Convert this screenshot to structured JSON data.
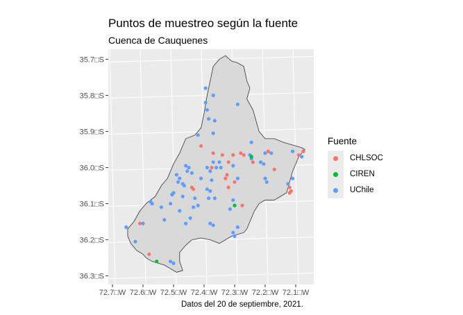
{
  "title": "Puntos de muestreo según la fuente",
  "subtitle": "Cuenca de Cauquenes",
  "caption": "Datos del 20 de septiembre, 2021.",
  "legend": {
    "title": "Fuente",
    "items": [
      {
        "label": "CHLSOC",
        "color": "#F8766D"
      },
      {
        "label": "CIREN",
        "color": "#00BA38"
      },
      {
        "label": "UChile",
        "color": "#619CFF"
      }
    ]
  },
  "axes": {
    "x_ticks": [
      "72.7□W",
      "72.6□W",
      "72.5□W",
      "72.4□W",
      "72.3□W",
      "72.2□W",
      "72.1□W"
    ],
    "y_ticks": [
      "35.7□S",
      "35.8□S",
      "35.9□S",
      "36.0□S",
      "36.1□S",
      "36.2□S",
      "36.3□S"
    ]
  },
  "map": {
    "lon_range": [
      -72.7,
      -72.05
    ],
    "lat_range": [
      -36.32,
      -35.68
    ],
    "boundary": [
      [
        -72.33,
        -35.69
      ],
      [
        -72.31,
        -35.705
      ],
      [
        -72.29,
        -35.71
      ],
      [
        -72.27,
        -35.72
      ],
      [
        -72.26,
        -35.76
      ],
      [
        -72.25,
        -35.78
      ],
      [
        -72.26,
        -35.81
      ],
      [
        -72.24,
        -35.84
      ],
      [
        -72.23,
        -35.87
      ],
      [
        -72.22,
        -35.9
      ],
      [
        -72.2,
        -35.92
      ],
      [
        -72.17,
        -35.92
      ],
      [
        -72.14,
        -35.93
      ],
      [
        -72.12,
        -35.935
      ],
      [
        -72.1,
        -35.94
      ],
      [
        -72.08,
        -35.945
      ],
      [
        -72.07,
        -35.95
      ],
      [
        -72.09,
        -35.97
      ],
      [
        -72.11,
        -36.01
      ],
      [
        -72.12,
        -36.04
      ],
      [
        -72.13,
        -36.07
      ],
      [
        -72.15,
        -36.08
      ],
      [
        -72.17,
        -36.09
      ],
      [
        -72.2,
        -36.09
      ],
      [
        -72.22,
        -36.1
      ],
      [
        -72.235,
        -36.12
      ],
      [
        -72.25,
        -36.15
      ],
      [
        -72.26,
        -36.17
      ],
      [
        -72.27,
        -36.18
      ],
      [
        -72.29,
        -36.185
      ],
      [
        -72.31,
        -36.19
      ],
      [
        -72.33,
        -36.2
      ],
      [
        -72.35,
        -36.21
      ],
      [
        -72.38,
        -36.2
      ],
      [
        -72.41,
        -36.195
      ],
      [
        -72.44,
        -36.2
      ],
      [
        -72.46,
        -36.215
      ],
      [
        -72.48,
        -36.235
      ],
      [
        -72.48,
        -36.26
      ],
      [
        -72.47,
        -36.285
      ],
      [
        -72.49,
        -36.29
      ],
      [
        -72.51,
        -36.28
      ],
      [
        -72.53,
        -36.27
      ],
      [
        -72.55,
        -36.265
      ],
      [
        -72.57,
        -36.26
      ],
      [
        -72.59,
        -36.25
      ],
      [
        -72.6,
        -36.24
      ],
      [
        -72.62,
        -36.23
      ],
      [
        -72.64,
        -36.21
      ],
      [
        -72.65,
        -36.19
      ],
      [
        -72.65,
        -36.17
      ],
      [
        -72.63,
        -36.15
      ],
      [
        -72.61,
        -36.12
      ],
      [
        -72.59,
        -36.1
      ],
      [
        -72.56,
        -36.08
      ],
      [
        -72.54,
        -36.05
      ],
      [
        -72.52,
        -36.03
      ],
      [
        -72.5,
        -35.99
      ],
      [
        -72.48,
        -35.96
      ],
      [
        -72.46,
        -35.92
      ],
      [
        -72.43,
        -35.91
      ],
      [
        -72.41,
        -35.89
      ],
      [
        -72.4,
        -35.85
      ],
      [
        -72.39,
        -35.8
      ],
      [
        -72.38,
        -35.76
      ],
      [
        -72.37,
        -35.72
      ],
      [
        -72.35,
        -35.7
      ]
    ],
    "points": [
      {
        "s": "UChile",
        "lon": -72.395,
        "lat": -35.78
      },
      {
        "s": "UChile",
        "lon": -72.37,
        "lat": -35.8
      },
      {
        "s": "UChile",
        "lon": -72.395,
        "lat": -35.82
      },
      {
        "s": "UChile",
        "lon": -72.39,
        "lat": -35.84
      },
      {
        "s": "UChile",
        "lon": -72.29,
        "lat": -35.825
      },
      {
        "s": "UChile",
        "lon": -72.385,
        "lat": -35.865
      },
      {
        "s": "UChile",
        "lon": -72.365,
        "lat": -35.87
      },
      {
        "s": "UChile",
        "lon": -72.37,
        "lat": -35.905
      },
      {
        "s": "UChile",
        "lon": -72.42,
        "lat": -35.91
      },
      {
        "s": "UChile",
        "lon": -72.245,
        "lat": -35.93
      },
      {
        "s": "UChile",
        "lon": -72.11,
        "lat": -35.955
      },
      {
        "s": "UChile",
        "lon": -72.08,
        "lat": -35.97
      },
      {
        "s": "UChile",
        "lon": -72.2,
        "lat": -35.96
      },
      {
        "s": "UChile",
        "lon": -72.18,
        "lat": -35.96
      },
      {
        "s": "UChile",
        "lon": -72.25,
        "lat": -35.965
      },
      {
        "s": "UChile",
        "lon": -72.245,
        "lat": -35.975
      },
      {
        "s": "UChile",
        "lon": -72.215,
        "lat": -35.985
      },
      {
        "s": "UChile",
        "lon": -72.205,
        "lat": -35.99
      },
      {
        "s": "UChile",
        "lon": -72.35,
        "lat": -35.985
      },
      {
        "s": "UChile",
        "lon": -72.37,
        "lat": -35.985
      },
      {
        "s": "UChile",
        "lon": -72.36,
        "lat": -36.0
      },
      {
        "s": "UChile",
        "lon": -72.345,
        "lat": -36.0
      },
      {
        "s": "UChile",
        "lon": -72.305,
        "lat": -35.995
      },
      {
        "s": "UChile",
        "lon": -72.39,
        "lat": -36.0
      },
      {
        "s": "UChile",
        "lon": -72.38,
        "lat": -36.01
      },
      {
        "s": "UChile",
        "lon": -72.46,
        "lat": -35.995
      },
      {
        "s": "UChile",
        "lon": -72.45,
        "lat": -36.0
      },
      {
        "s": "UChile",
        "lon": -72.455,
        "lat": -36.01
      },
      {
        "s": "UChile",
        "lon": -72.44,
        "lat": -36.015
      },
      {
        "s": "UChile",
        "lon": -72.49,
        "lat": -36.02
      },
      {
        "s": "UChile",
        "lon": -72.41,
        "lat": -36.03
      },
      {
        "s": "UChile",
        "lon": -72.375,
        "lat": -36.035
      },
      {
        "s": "UChile",
        "lon": -72.48,
        "lat": -36.03
      },
      {
        "s": "UChile",
        "lon": -72.485,
        "lat": -36.04
      },
      {
        "s": "UChile",
        "lon": -72.47,
        "lat": -36.045
      },
      {
        "s": "UChile",
        "lon": -72.465,
        "lat": -36.05
      },
      {
        "s": "UChile",
        "lon": -72.39,
        "lat": -36.06
      },
      {
        "s": "UChile",
        "lon": -72.38,
        "lat": -36.065
      },
      {
        "s": "UChile",
        "lon": -72.29,
        "lat": -36.03
      },
      {
        "s": "UChile",
        "lon": -72.2,
        "lat": -36.03
      },
      {
        "s": "UChile",
        "lon": -72.195,
        "lat": -36.04
      },
      {
        "s": "UChile",
        "lon": -72.11,
        "lat": -36.03
      },
      {
        "s": "UChile",
        "lon": -72.125,
        "lat": -36.045
      },
      {
        "s": "UChile",
        "lon": -72.5,
        "lat": -36.07
      },
      {
        "s": "UChile",
        "lon": -72.505,
        "lat": -36.075
      },
      {
        "s": "UChile",
        "lon": -72.47,
        "lat": -36.08
      },
      {
        "s": "UChile",
        "lon": -72.43,
        "lat": -36.085
      },
      {
        "s": "UChile",
        "lon": -72.385,
        "lat": -36.085
      },
      {
        "s": "UChile",
        "lon": -72.365,
        "lat": -36.085
      },
      {
        "s": "UChile",
        "lon": -72.305,
        "lat": -36.09
      },
      {
        "s": "UChile",
        "lon": -72.575,
        "lat": -36.095
      },
      {
        "s": "UChile",
        "lon": -72.57,
        "lat": -36.1
      },
      {
        "s": "UChile",
        "lon": -72.51,
        "lat": -36.1
      },
      {
        "s": "UChile",
        "lon": -72.42,
        "lat": -36.105
      },
      {
        "s": "UChile",
        "lon": -72.435,
        "lat": -36.11
      },
      {
        "s": "UChile",
        "lon": -72.54,
        "lat": -36.11
      },
      {
        "s": "UChile",
        "lon": -72.48,
        "lat": -36.12
      },
      {
        "s": "UChile",
        "lon": -72.315,
        "lat": -36.115
      },
      {
        "s": "UChile",
        "lon": -72.445,
        "lat": -36.14
      },
      {
        "s": "UChile",
        "lon": -72.53,
        "lat": -36.145
      },
      {
        "s": "UChile",
        "lon": -72.46,
        "lat": -36.155
      },
      {
        "s": "UChile",
        "lon": -72.38,
        "lat": -36.155
      },
      {
        "s": "UChile",
        "lon": -72.37,
        "lat": -36.16
      },
      {
        "s": "UChile",
        "lon": -72.6,
        "lat": -36.155
      },
      {
        "s": "UChile",
        "lon": -72.655,
        "lat": -36.165
      },
      {
        "s": "UChile",
        "lon": -72.29,
        "lat": -36.165
      },
      {
        "s": "UChile",
        "lon": -72.305,
        "lat": -36.18
      },
      {
        "s": "UChile",
        "lon": -72.3,
        "lat": -36.19
      },
      {
        "s": "UChile",
        "lon": -72.625,
        "lat": -36.205
      },
      {
        "s": "UChile",
        "lon": -72.51,
        "lat": -36.26
      },
      {
        "s": "UChile",
        "lon": -72.5,
        "lat": -36.265
      },
      {
        "s": "CHLSOC",
        "lon": -72.41,
        "lat": -35.94
      },
      {
        "s": "CHLSOC",
        "lon": -72.37,
        "lat": -35.96
      },
      {
        "s": "CHLSOC",
        "lon": -72.34,
        "lat": -35.965
      },
      {
        "s": "CHLSOC",
        "lon": -72.305,
        "lat": -35.965
      },
      {
        "s": "CHLSOC",
        "lon": -72.28,
        "lat": -35.96
      },
      {
        "s": "CHLSOC",
        "lon": -72.27,
        "lat": -35.965
      },
      {
        "s": "CHLSOC",
        "lon": -72.19,
        "lat": -35.955
      },
      {
        "s": "CHLSOC",
        "lon": -72.09,
        "lat": -35.965
      },
      {
        "s": "CHLSOC",
        "lon": -72.075,
        "lat": -35.955
      },
      {
        "s": "CHLSOC",
        "lon": -72.32,
        "lat": -35.985
      },
      {
        "s": "CHLSOC",
        "lon": -72.24,
        "lat": -35.985
      },
      {
        "s": "CHLSOC",
        "lon": -72.17,
        "lat": -36.005
      },
      {
        "s": "CHLSOC",
        "lon": -72.375,
        "lat": -36.0
      },
      {
        "s": "CHLSOC",
        "lon": -72.325,
        "lat": -36.02
      },
      {
        "s": "CHLSOC",
        "lon": -72.33,
        "lat": -36.03
      },
      {
        "s": "CHLSOC",
        "lon": -72.3,
        "lat": -36.04
      },
      {
        "s": "CHLSOC",
        "lon": -72.32,
        "lat": -36.055
      },
      {
        "s": "CHLSOC",
        "lon": -72.44,
        "lat": -36.055
      },
      {
        "s": "CHLSOC",
        "lon": -72.435,
        "lat": -36.06
      },
      {
        "s": "CHLSOC",
        "lon": -72.12,
        "lat": -36.055
      },
      {
        "s": "CHLSOC",
        "lon": -72.115,
        "lat": -36.065
      },
      {
        "s": "CHLSOC",
        "lon": -72.12,
        "lat": -36.07
      },
      {
        "s": "CHLSOC",
        "lon": -72.275,
        "lat": -36.105
      },
      {
        "s": "CHLSOC",
        "lon": -72.61,
        "lat": -36.155
      },
      {
        "s": "CHLSOC",
        "lon": -72.58,
        "lat": -36.24
      },
      {
        "s": "CIREN",
        "lon": -72.245,
        "lat": -35.97
      },
      {
        "s": "CIREN",
        "lon": -72.3,
        "lat": -36.105
      },
      {
        "s": "CIREN",
        "lon": -72.555,
        "lat": -36.26
      }
    ]
  }
}
